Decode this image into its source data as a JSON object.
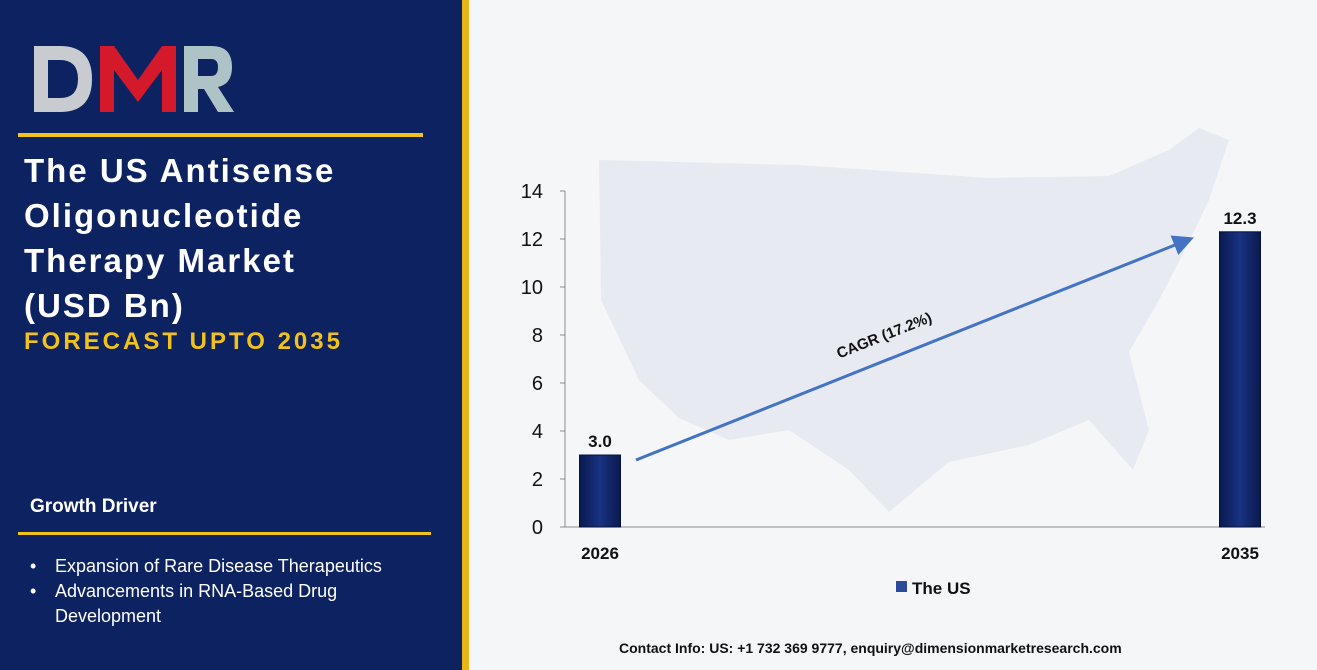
{
  "logo": {
    "text": "DMR"
  },
  "title_lines": [
    "The US Antisense",
    "Oligonucleotide",
    "Therapy Market",
    "(USD Bn)"
  ],
  "forecast": "FORECAST UPTO 2035",
  "growth_driver": {
    "title": "Growth Driver",
    "items": [
      "Expansion of Rare Disease Therapeutics",
      "Advancements in RNA-Based Drug Development"
    ]
  },
  "contact": "Contact Info: US: +1 732 369 9777, enquiry@dimensionmarketresearch.com",
  "colors": {
    "panel": "#0d2260",
    "accent": "#f2c21b",
    "bar": "#0d2260"
  },
  "chart_data": {
    "type": "bar",
    "categories": [
      "2026",
      "2035"
    ],
    "series": [
      {
        "name": "The US",
        "values": [
          3.0,
          12.3
        ]
      }
    ],
    "data_labels": [
      "3.0",
      "12.3"
    ],
    "yticks": [
      0,
      2,
      4,
      6,
      8,
      10,
      12,
      14
    ],
    "ylim": [
      0,
      14
    ],
    "annotation": "CAGR (17.2%)",
    "legend_position": "bottom-center"
  }
}
